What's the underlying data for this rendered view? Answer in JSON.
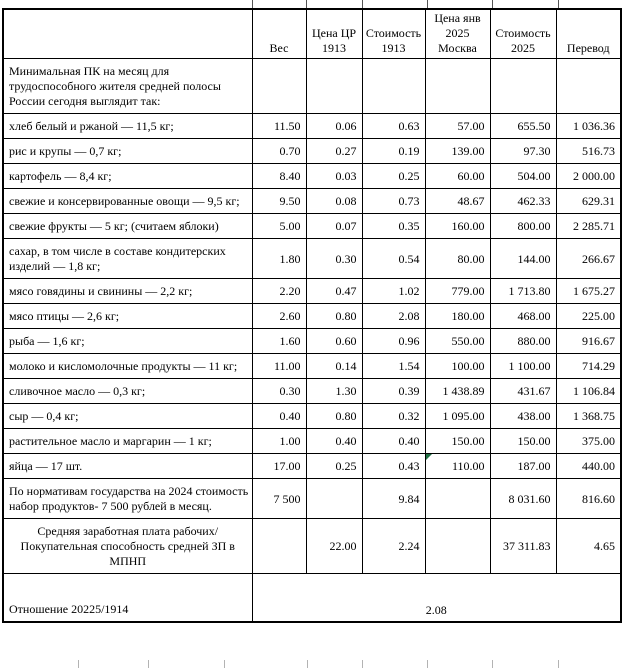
{
  "colors": {
    "flag_triangle": "#1d6f42",
    "grid_border": "#000000",
    "background": "#ffffff",
    "tick_top": "#555555",
    "tick_bottom": "#b3b3b3"
  },
  "table": {
    "columns": [
      "",
      "Вес",
      "Цена ЦР\n1913",
      "Стоимость\n1913",
      "Цена янв\n2025\nМосква",
      "Стоимость\n2025",
      "Перевод"
    ],
    "rows": [
      {
        "label": "Минимальная ПК на месяц для трудоспособного жителя средней полосы России сегодня выглядит так:",
        "values": [
          "",
          "",
          "",
          "",
          "",
          ""
        ]
      },
      {
        "label": "хлеб белый и ржаной — 11,5 кг;",
        "values": [
          "11.50",
          "0.06",
          "0.63",
          "57.00",
          "655.50",
          "1 036.36"
        ]
      },
      {
        "label": "рис и крупы — 0,7 кг;",
        "values": [
          "0.70",
          "0.27",
          "0.19",
          "139.00",
          "97.30",
          "516.73"
        ]
      },
      {
        "label": "картофель — 8,4 кг;",
        "values": [
          "8.40",
          "0.03",
          "0.25",
          "60.00",
          "504.00",
          "2 000.00"
        ]
      },
      {
        "label": "свежие и консервированные овощи — 9,5 кг;",
        "values": [
          "9.50",
          "0.08",
          "0.73",
          "48.67",
          "462.33",
          "629.31"
        ]
      },
      {
        "label": "свежие фрукты — 5 кг; (считаем яблоки)",
        "values": [
          "5.00",
          "0.07",
          "0.35",
          "160.00",
          "800.00",
          "2 285.71"
        ]
      },
      {
        "label": "сахар, в том числе в составе кондитерских изделий — 1,8 кг;",
        "values": [
          "1.80",
          "0.30",
          "0.54",
          "80.00",
          "144.00",
          "266.67"
        ]
      },
      {
        "label": "мясо говядины и свинины — 2,2 кг;",
        "values": [
          "2.20",
          "0.47",
          "1.02",
          "779.00",
          "1 713.80",
          "1 675.27"
        ]
      },
      {
        "label": "мясо птицы — 2,6 кг;",
        "values": [
          "2.60",
          "0.80",
          "2.08",
          "180.00",
          "468.00",
          "225.00"
        ]
      },
      {
        "label": "рыба — 1,6 кг;",
        "values": [
          "1.60",
          "0.60",
          "0.96",
          "550.00",
          "880.00",
          "916.67"
        ]
      },
      {
        "label": "молоко и кисломолочные продукты — 11 кг;",
        "values": [
          "11.00",
          "0.14",
          "1.54",
          "100.00",
          "1 100.00",
          "714.29"
        ]
      },
      {
        "label": "сливочное масло — 0,3 кг;",
        "values": [
          "0.30",
          "1.30",
          "0.39",
          "1 438.89",
          "431.67",
          "1 106.84"
        ]
      },
      {
        "label": "сыр — 0,4 кг;",
        "values": [
          "0.40",
          "0.80",
          "0.32",
          "1 095.00",
          "438.00",
          "1 368.75"
        ]
      },
      {
        "label": "растительное масло и маргарин — 1 кг;",
        "values": [
          "1.00",
          "0.40",
          "0.40",
          "150.00",
          "150.00",
          "375.00"
        ]
      },
      {
        "label": "яйца — 17 шт.",
        "values": [
          "17.00",
          "0.25",
          "0.43",
          "110.00",
          "187.00",
          "440.00"
        ],
        "marker_col": 3
      },
      {
        "label": "По нормативам государства на 2024 стоимость набор продуктов- 7 500 рублей в месяц.",
        "values": [
          "7 500",
          "",
          "9.84",
          "",
          "8 031.60",
          "816.60"
        ]
      },
      {
        "label": "Средняя заработная плата рабочих/Покупательная способность средней ЗП в МПНП",
        "center": true,
        "values": [
          "",
          "22.00",
          "2.24",
          "",
          "37 311.83",
          "4.65"
        ]
      },
      {
        "label": "Отношение 20225/1914",
        "bottom": true,
        "merged_value": "2.08"
      }
    ]
  },
  "decor": {
    "top_ticks_x": [
      252,
      306,
      362,
      427,
      492,
      558
    ],
    "bottom_ticks_x": [
      78,
      148,
      224,
      307,
      362,
      427,
      492,
      558
    ]
  }
}
